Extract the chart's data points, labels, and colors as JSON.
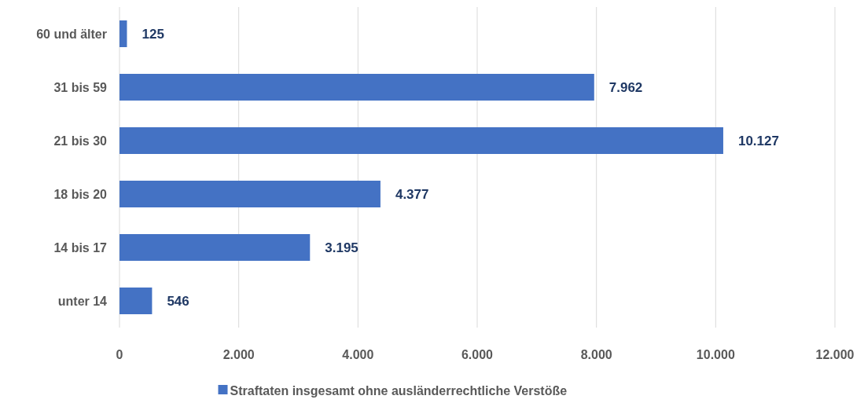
{
  "chart_data": {
    "type": "bar",
    "orientation": "horizontal",
    "categories": [
      "60 und älter",
      "31 bis 59",
      "21 bis 30",
      "18 bis 20",
      "14 bis 17",
      "unter 14"
    ],
    "series": [
      {
        "name": "Straftaten insgesamt ohne ausländerrechtliche Verstöße",
        "color": "#4472c4",
        "values": [
          125,
          7962,
          10127,
          4377,
          3195,
          546
        ],
        "value_labels": [
          "125",
          "7.962",
          "10.127",
          "4.377",
          "3.195",
          "546"
        ]
      }
    ],
    "xlim": [
      0,
      12000
    ],
    "xticks": [
      0,
      {
        "value": 2000,
        "label": "2.000"
      },
      {
        "value": 4000,
        "label": "4.000"
      },
      {
        "value": 6000,
        "label": "6.000"
      },
      {
        "value": 8000,
        "label": "8.000"
      },
      {
        "value": 10000,
        "label": "10.000"
      },
      {
        "value": 12000,
        "label": "12.000"
      }
    ],
    "grid": "x",
    "legend": "bottom"
  }
}
